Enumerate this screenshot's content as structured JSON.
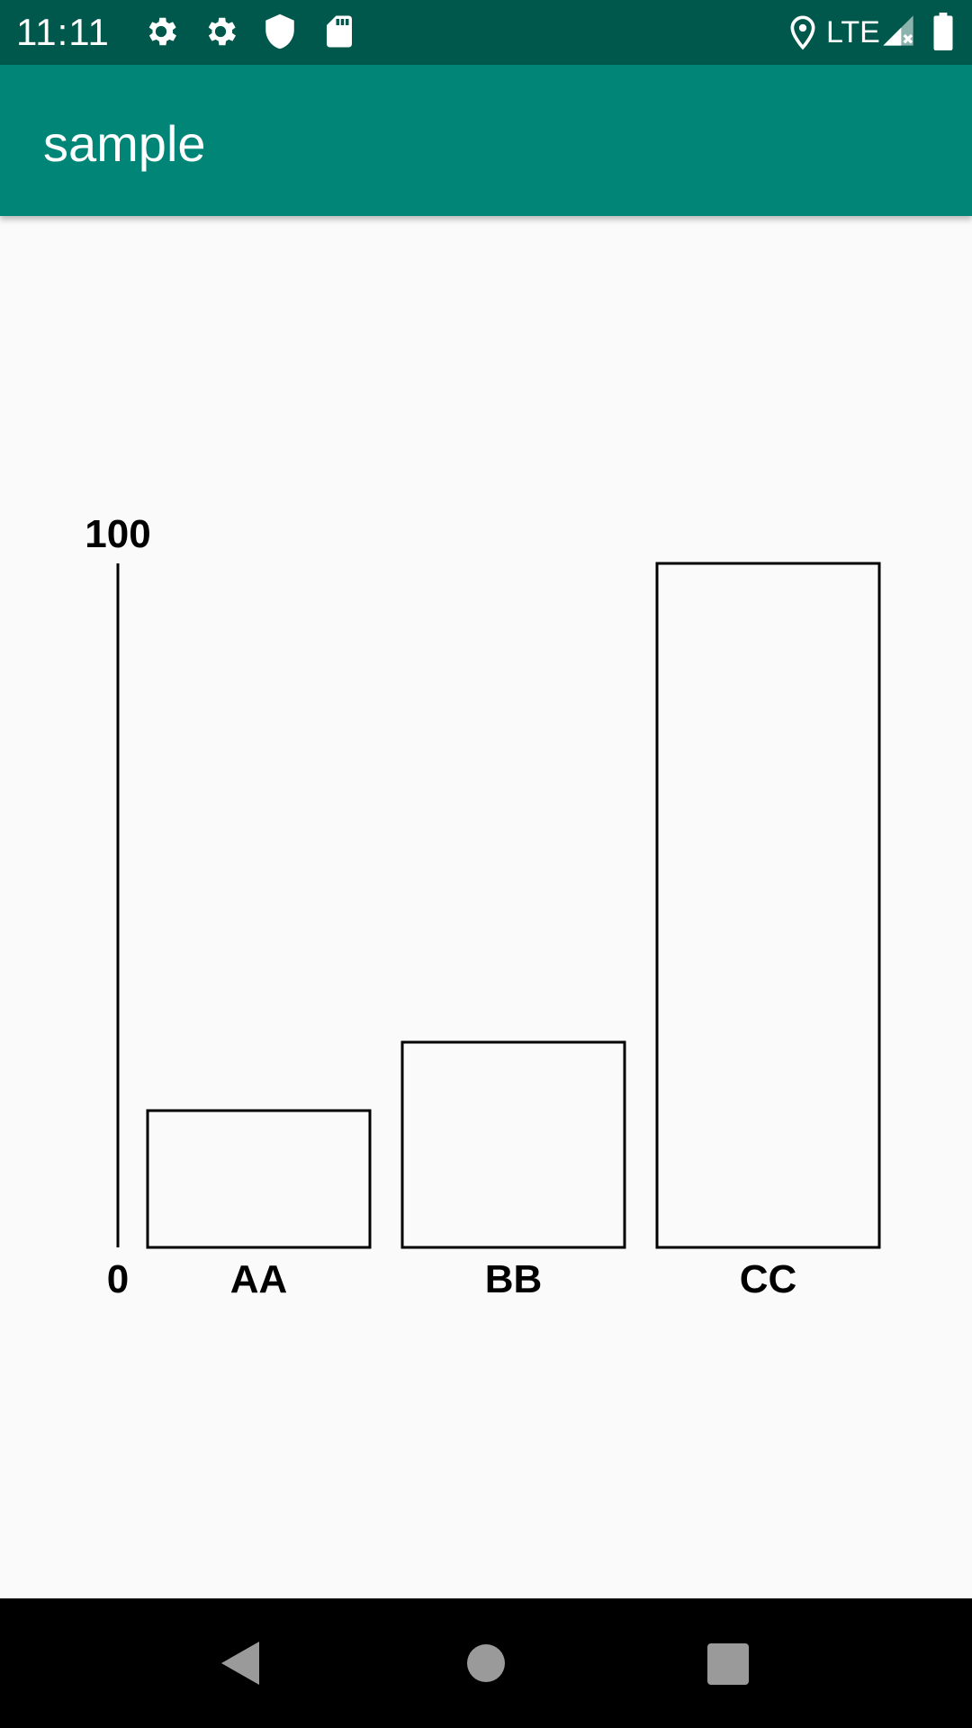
{
  "status_bar": {
    "time": "11:11",
    "network": "LTE",
    "icons": [
      "settings-icon",
      "settings-icon",
      "shield-icon",
      "sd-card-icon",
      "location-icon",
      "signal-icon",
      "battery-icon"
    ],
    "background": "#00574b"
  },
  "app_bar": {
    "title": "sample",
    "background": "#008577"
  },
  "chart_data": {
    "type": "bar",
    "categories": [
      "AA",
      "BB",
      "CC"
    ],
    "values": [
      20,
      30,
      100
    ],
    "ylim": [
      0,
      100
    ],
    "y_tick_labels": [
      "0",
      "100"
    ],
    "grid": false,
    "style": "outlined bars, black stroke"
  },
  "nav_bar": {
    "icons": [
      "back-icon",
      "home-icon",
      "recents-icon"
    ],
    "background": "#000000"
  }
}
